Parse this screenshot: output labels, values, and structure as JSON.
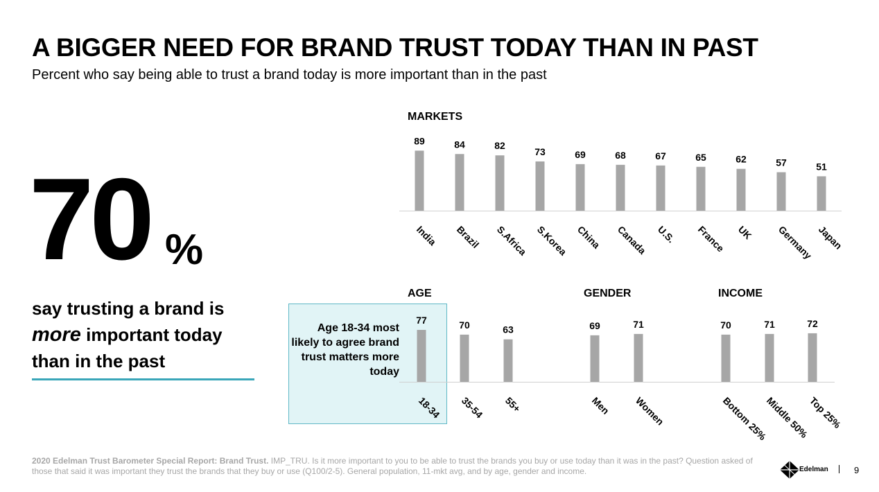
{
  "title": "A BIGGER NEED FOR BRAND TRUST TODAY THAN IN PAST",
  "subtitle": "Percent who say being able to trust a brand today is more important than in the past",
  "headline": {
    "number": "70",
    "percent_sign": "%",
    "line1": "say trusting a brand is",
    "emphasis": "more",
    "line2_rest": " important today",
    "line3": "than in the past"
  },
  "callout": {
    "text": "Age 18-34 most likely to agree brand trust matters more today"
  },
  "chart_data": [
    {
      "type": "bar",
      "title": "MARKETS",
      "categories": [
        "India",
        "Brazil",
        "S.Africa",
        "S.Korea",
        "China",
        "Canada",
        "U.S.",
        "France",
        "UK",
        "Germany",
        "Japan"
      ],
      "values": [
        89,
        84,
        82,
        73,
        69,
        68,
        67,
        65,
        62,
        57,
        51
      ],
      "ylim": [
        0,
        100
      ],
      "color": "#a6a6a6"
    },
    {
      "type": "bar",
      "title": "AGE",
      "categories": [
        "18-34",
        "35-54",
        "55+"
      ],
      "values": [
        77,
        70,
        63
      ],
      "ylim": [
        0,
        100
      ],
      "color": "#a6a6a6"
    },
    {
      "type": "bar",
      "title": "GENDER",
      "categories": [
        "Men",
        "Women"
      ],
      "values": [
        69,
        71
      ],
      "ylim": [
        0,
        100
      ],
      "color": "#a6a6a6"
    },
    {
      "type": "bar",
      "title": "INCOME",
      "categories": [
        "Bottom 25%",
        "Middle 50%",
        "Top 25%"
      ],
      "values": [
        70,
        71,
        72
      ],
      "ylim": [
        0,
        100
      ],
      "color": "#a6a6a6"
    }
  ],
  "footer": {
    "bold": "2020 Edelman Trust Barometer Special Report: Brand Trust.",
    "text": " IMP_TRU. Is it more important to you to be able to trust the brands you buy or use today than it was in the past? Question asked of those that said it was important they trust the brands that they buy or use (Q100/2-5). General population, 11-mkt avg, and by age, gender and income."
  },
  "logo_text": "Edelman",
  "page_number": "9",
  "colors": {
    "bar": "#a6a6a6",
    "accent": "#3aa6b9",
    "callout_bg": "#e1f4f6"
  }
}
